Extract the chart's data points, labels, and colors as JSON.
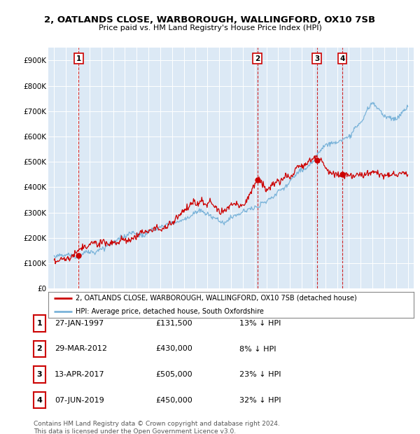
{
  "title_line1": "2, OATLANDS CLOSE, WARBOROUGH, WALLINGFORD, OX10 7SB",
  "title_line2": "Price paid vs. HM Land Registry's House Price Index (HPI)",
  "plot_bg_color": "#dce9f5",
  "hpi_color": "#7ab3d9",
  "price_color": "#cc0000",
  "vline_color": "#cc0000",
  "ylim": [
    0,
    950000
  ],
  "yticks": [
    0,
    100000,
    200000,
    300000,
    400000,
    500000,
    600000,
    700000,
    800000,
    900000
  ],
  "ytick_labels": [
    "£0",
    "£100K",
    "£200K",
    "£300K",
    "£400K",
    "£500K",
    "£600K",
    "£700K",
    "£800K",
    "£900K"
  ],
  "purchases": [
    {
      "label": "1",
      "date_str": "27-JAN-1997",
      "date_num": 1997.07,
      "price": 131500,
      "pct": "13%",
      "dir": "↓"
    },
    {
      "label": "2",
      "date_str": "29-MAR-2012",
      "date_num": 2012.24,
      "price": 430000,
      "pct": "8%",
      "dir": "↓"
    },
    {
      "label": "3",
      "date_str": "13-APR-2017",
      "date_num": 2017.28,
      "price": 505000,
      "pct": "23%",
      "dir": "↓"
    },
    {
      "label": "4",
      "date_str": "07-JUN-2019",
      "date_num": 2019.44,
      "price": 450000,
      "pct": "32%",
      "dir": "↓"
    }
  ],
  "legend_label_price": "2, OATLANDS CLOSE, WARBOROUGH, WALLINGFORD, OX10 7SB (detached house)",
  "legend_label_hpi": "HPI: Average price, detached house, South Oxfordshire",
  "footer": "Contains HM Land Registry data © Crown copyright and database right 2024.\nThis data is licensed under the Open Government Licence v3.0.",
  "xlim_start": 1994.5,
  "xlim_end": 2025.5
}
